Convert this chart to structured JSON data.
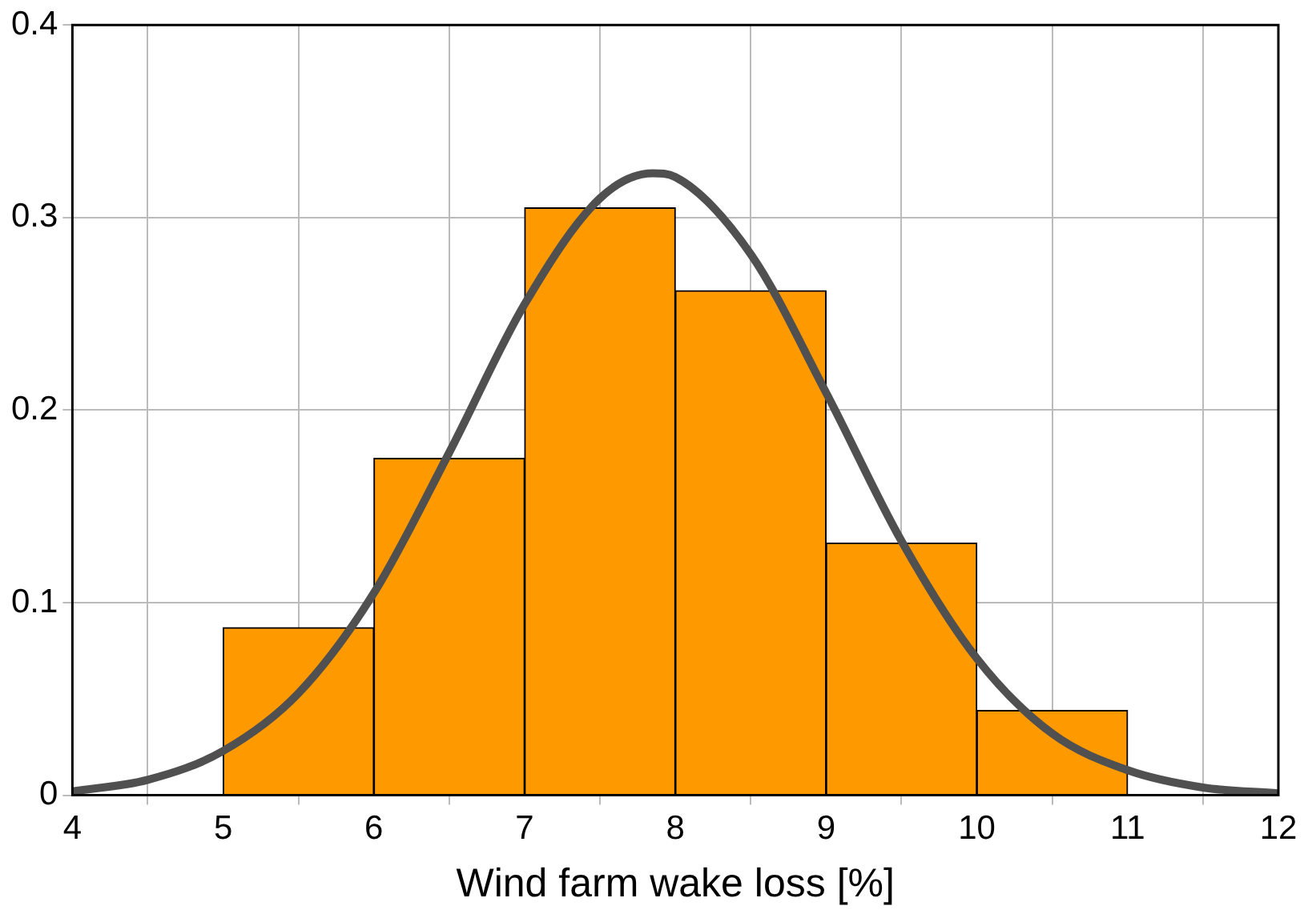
{
  "chart_data": {
    "type": "histogram",
    "xlabel": "Wind farm wake loss [%]",
    "bins": [
      5,
      6,
      7,
      8,
      9,
      10,
      11
    ],
    "values": [
      0.087,
      0.175,
      0.305,
      0.262,
      0.131,
      0.044
    ],
    "color": "#ff9900",
    "series": [
      {
        "type": "line",
        "color": "#505050",
        "x": [
          4,
          4.5,
          5,
          5.5,
          6,
          6.5,
          7,
          7.5,
          7.85,
          8,
          8.5,
          9,
          9.5,
          10,
          10.5,
          11,
          11.5,
          12
        ],
        "values": [
          0.002,
          0.008,
          0.023,
          0.053,
          0.105,
          0.178,
          0.255,
          0.31,
          0.323,
          0.321,
          0.281,
          0.209,
          0.132,
          0.071,
          0.032,
          0.013,
          0.004,
          0.001
        ]
      }
    ],
    "xlim": [
      4,
      12
    ],
    "xticks": [
      4,
      5,
      6,
      7,
      8,
      9,
      10,
      11,
      12
    ],
    "ylim": [
      0,
      0.4
    ],
    "yticks": [
      0,
      0.1,
      0.2,
      0.3,
      0.4
    ],
    "grid": true,
    "legend": false,
    "marker": "none",
    "line_style": "solid"
  }
}
